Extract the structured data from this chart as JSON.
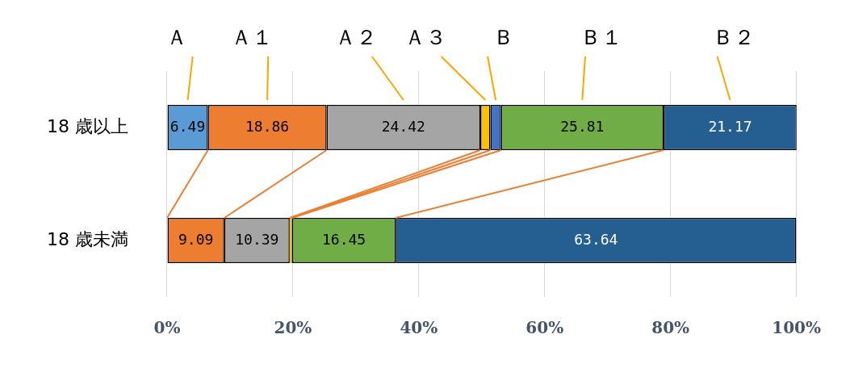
{
  "chart_data": {
    "type": "bar",
    "orientation": "horizontal",
    "stacked": true,
    "categories": [
      "18 歳以上",
      "18 歳未満"
    ],
    "xlim": [
      0,
      100
    ],
    "xticks": [
      {
        "value": 0,
        "label": "0%"
      },
      {
        "value": 20,
        "label": "20%"
      },
      {
        "value": 40,
        "label": "40%"
      },
      {
        "value": 60,
        "label": "60%"
      },
      {
        "value": 80,
        "label": "80%"
      },
      {
        "value": 100,
        "label": "100%"
      }
    ],
    "grid": "x",
    "series": [
      {
        "name": "Ａ",
        "color": "#5b9bd5",
        "values": [
          6.49,
          0
        ],
        "value_labels": [
          "6.49",
          null
        ]
      },
      {
        "name": "Ａ１",
        "color": "#ed7d31",
        "values": [
          18.86,
          9.09
        ],
        "value_labels": [
          "18.86",
          "9.09"
        ]
      },
      {
        "name": "Ａ２",
        "color": "#a5a5a5",
        "values": [
          24.42,
          10.39
        ],
        "value_labels": [
          "24.42",
          "10.39"
        ]
      },
      {
        "name": "Ａ３",
        "color": "#ffc000",
        "values": [
          1.6,
          0.3
        ],
        "value_labels": [
          null,
          null
        ]
      },
      {
        "name": "Ｂ",
        "color": "#4472c4",
        "values": [
          1.7,
          0.1
        ],
        "value_labels": [
          null,
          null
        ]
      },
      {
        "name": "Ｂ１",
        "color": "#70ad47",
        "values": [
          25.81,
          16.45
        ],
        "value_labels": [
          "25.81",
          "16.45"
        ]
      },
      {
        "name": "Ｂ２",
        "color": "#255e91",
        "values": [
          21.17,
          63.64
        ],
        "value_labels": [
          "21.17",
          "63.64"
        ]
      }
    ]
  }
}
